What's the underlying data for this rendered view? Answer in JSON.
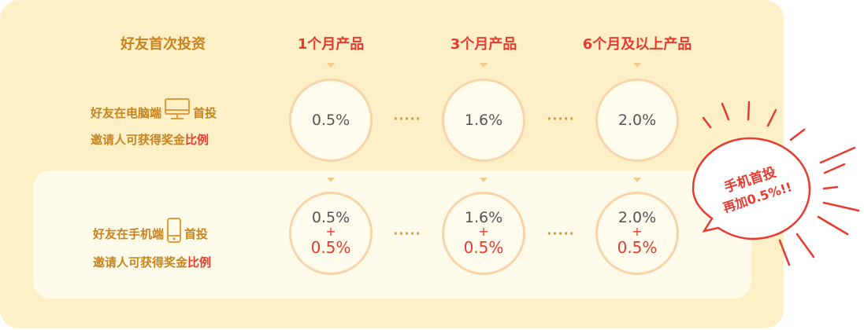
{
  "header": {
    "first_invest": "好友首次投资",
    "products": [
      "1个月产品",
      "3个月产品",
      "6个月及以上产品"
    ]
  },
  "rows": {
    "pc": {
      "label_pre": "好友在电脑端",
      "label_post": "首投",
      "line2_pre": "邀请人可获得奖金",
      "line2_red": "比例",
      "icon": "monitor-icon",
      "rates": [
        "0.5%",
        "1.6%",
        "2.0%"
      ]
    },
    "mobile": {
      "label_pre": "好友在手机端",
      "label_post": "首投",
      "line2_pre": "邀请人可获得奖金",
      "line2_red": "比例",
      "icon": "phone-icon",
      "rates": [
        "0.5%",
        "1.6%",
        "2.0%"
      ],
      "plus": "+",
      "bonus": [
        "0.5%",
        "0.5%",
        "0.5%"
      ]
    }
  },
  "separator": "·····",
  "badge": {
    "line1": "手机首投",
    "line2": "再加0.5%!!"
  },
  "colors": {
    "panel": "#fdefc6",
    "inner": "#fffbea",
    "gold": "#c8831d",
    "red": "#e93a2f",
    "circle_border": "#f9d4a8"
  }
}
